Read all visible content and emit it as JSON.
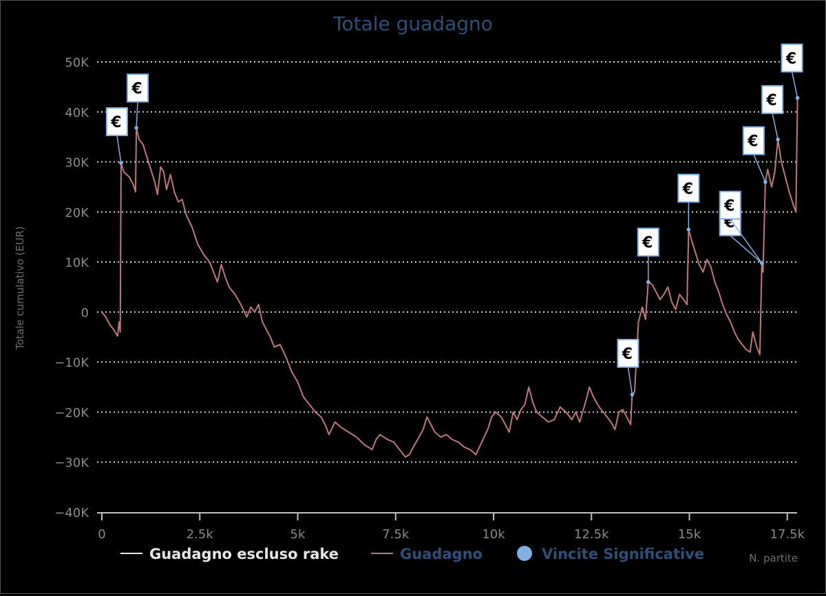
{
  "chart_data": {
    "type": "line",
    "title": "Totale guadagno",
    "ylabel": "Totale cumulativo (EUR)",
    "xlabel": "N. partite",
    "xlim": [
      0,
      17750
    ],
    "ylim": [
      -40000,
      50000
    ],
    "x_ticks": [
      {
        "value": 0,
        "label": "0"
      },
      {
        "value": 2500,
        "label": "2.5k"
      },
      {
        "value": 5000,
        "label": "5k"
      },
      {
        "value": 7500,
        "label": "7.5k"
      },
      {
        "value": 10000,
        "label": "10k"
      },
      {
        "value": 12500,
        "label": "12.5k"
      },
      {
        "value": 15000,
        "label": "15k"
      },
      {
        "value": 17500,
        "label": "17.5k"
      }
    ],
    "y_ticks": [
      {
        "value": 50000,
        "label": "50K"
      },
      {
        "value": 40000,
        "label": "40K"
      },
      {
        "value": 30000,
        "label": "30K"
      },
      {
        "value": 20000,
        "label": "20K"
      },
      {
        "value": 10000,
        "label": "10K"
      },
      {
        "value": 0,
        "label": "0"
      },
      {
        "value": -10000,
        "label": "−10K"
      },
      {
        "value": -20000,
        "label": "−20K"
      },
      {
        "value": -30000,
        "label": "−30K"
      },
      {
        "value": -40000,
        "label": "−40K"
      }
    ],
    "grid": "horizontal-dotted",
    "legend_position": "bottom",
    "series": [
      {
        "name": "Guadagno escluso rake",
        "color": "#e8e8e8",
        "points": []
      },
      {
        "name": "Guadagno",
        "color": "#c07878",
        "points": [
          [
            0,
            0
          ],
          [
            100,
            -1000
          ],
          [
            200,
            -2500
          ],
          [
            300,
            -3500
          ],
          [
            400,
            -4800
          ],
          [
            440,
            -2000
          ],
          [
            470,
            -4000
          ],
          [
            490,
            29800
          ],
          [
            560,
            28000
          ],
          [
            700,
            27000
          ],
          [
            800,
            25500
          ],
          [
            860,
            24000
          ],
          [
            880,
            36800
          ],
          [
            950,
            34500
          ],
          [
            1050,
            33500
          ],
          [
            1150,
            31000
          ],
          [
            1250,
            28500
          ],
          [
            1350,
            26000
          ],
          [
            1420,
            23500
          ],
          [
            1500,
            29000
          ],
          [
            1580,
            28000
          ],
          [
            1650,
            24500
          ],
          [
            1750,
            27500
          ],
          [
            1850,
            24000
          ],
          [
            1950,
            22000
          ],
          [
            2050,
            22500
          ],
          [
            2150,
            19500
          ],
          [
            2300,
            17000
          ],
          [
            2450,
            13500
          ],
          [
            2600,
            11500
          ],
          [
            2750,
            10000
          ],
          [
            2850,
            8000
          ],
          [
            2950,
            6000
          ],
          [
            3050,
            9500
          ],
          [
            3150,
            7000
          ],
          [
            3250,
            5000
          ],
          [
            3400,
            3500
          ],
          [
            3550,
            1500
          ],
          [
            3700,
            -1000
          ],
          [
            3800,
            1000
          ],
          [
            3900,
            0
          ],
          [
            4000,
            1500
          ],
          [
            4100,
            -2000
          ],
          [
            4200,
            -3500
          ],
          [
            4300,
            -5000
          ],
          [
            4400,
            -7000
          ],
          [
            4550,
            -6500
          ],
          [
            4700,
            -9000
          ],
          [
            4850,
            -12000
          ],
          [
            5000,
            -14000
          ],
          [
            5150,
            -17000
          ],
          [
            5300,
            -18500
          ],
          [
            5450,
            -20000
          ],
          [
            5600,
            -21000
          ],
          [
            5700,
            -22500
          ],
          [
            5800,
            -24500
          ],
          [
            5950,
            -22000
          ],
          [
            6100,
            -23000
          ],
          [
            6300,
            -24000
          ],
          [
            6500,
            -25000
          ],
          [
            6700,
            -26500
          ],
          [
            6900,
            -27500
          ],
          [
            7000,
            -25500
          ],
          [
            7100,
            -24500
          ],
          [
            7300,
            -25500
          ],
          [
            7450,
            -26000
          ],
          [
            7600,
            -27500
          ],
          [
            7750,
            -29000
          ],
          [
            7850,
            -28500
          ],
          [
            7950,
            -27000
          ],
          [
            8100,
            -25000
          ],
          [
            8200,
            -23500
          ],
          [
            8300,
            -21000
          ],
          [
            8400,
            -22500
          ],
          [
            8500,
            -24000
          ],
          [
            8650,
            -25000
          ],
          [
            8800,
            -24500
          ],
          [
            8950,
            -25500
          ],
          [
            9100,
            -26000
          ],
          [
            9250,
            -27000
          ],
          [
            9400,
            -27500
          ],
          [
            9550,
            -28500
          ],
          [
            9700,
            -26000
          ],
          [
            9850,
            -23500
          ],
          [
            9950,
            -21000
          ],
          [
            10050,
            -20000
          ],
          [
            10200,
            -21000
          ],
          [
            10300,
            -22500
          ],
          [
            10400,
            -24000
          ],
          [
            10500,
            -20000
          ],
          [
            10600,
            -21500
          ],
          [
            10700,
            -19500
          ],
          [
            10800,
            -18500
          ],
          [
            10900,
            -15000
          ],
          [
            11000,
            -18000
          ],
          [
            11100,
            -20000
          ],
          [
            11250,
            -21000
          ],
          [
            11400,
            -22000
          ],
          [
            11550,
            -21500
          ],
          [
            11700,
            -19000
          ],
          [
            11850,
            -20000
          ],
          [
            12000,
            -21500
          ],
          [
            12100,
            -20000
          ],
          [
            12200,
            -22000
          ],
          [
            12350,
            -18000
          ],
          [
            12450,
            -15000
          ],
          [
            12550,
            -17000
          ],
          [
            12700,
            -19000
          ],
          [
            12850,
            -20500
          ],
          [
            13000,
            -22000
          ],
          [
            13100,
            -23500
          ],
          [
            13200,
            -20000
          ],
          [
            13300,
            -19500
          ],
          [
            13400,
            -21000
          ],
          [
            13500,
            -22500
          ],
          [
            13540,
            -16500
          ],
          [
            13600,
            -16000
          ],
          [
            13700,
            -2000
          ],
          [
            13800,
            1000
          ],
          [
            13880,
            -1500
          ],
          [
            13950,
            6000
          ],
          [
            14050,
            5500
          ],
          [
            14150,
            4000
          ],
          [
            14250,
            2500
          ],
          [
            14350,
            3500
          ],
          [
            14450,
            5000
          ],
          [
            14550,
            2000
          ],
          [
            14650,
            500
          ],
          [
            14750,
            3500
          ],
          [
            14850,
            2500
          ],
          [
            14940,
            1500
          ],
          [
            14980,
            16500
          ],
          [
            15050,
            14500
          ],
          [
            15150,
            12000
          ],
          [
            15250,
            9500
          ],
          [
            15350,
            8000
          ],
          [
            15450,
            10500
          ],
          [
            15550,
            9000
          ],
          [
            15650,
            6000
          ],
          [
            15750,
            4000
          ],
          [
            15850,
            1500
          ],
          [
            15950,
            -500
          ],
          [
            16050,
            -2000
          ],
          [
            16150,
            -4000
          ],
          [
            16250,
            -5500
          ],
          [
            16350,
            -6500
          ],
          [
            16450,
            -7500
          ],
          [
            16550,
            -8000
          ],
          [
            16620,
            -4000
          ],
          [
            16720,
            -7000
          ],
          [
            16800,
            -8500
          ],
          [
            16850,
            9800
          ],
          [
            16880,
            8000
          ],
          [
            16940,
            26000
          ],
          [
            17000,
            28500
          ],
          [
            17100,
            25000
          ],
          [
            17180,
            28000
          ],
          [
            17260,
            34500
          ],
          [
            17350,
            30000
          ],
          [
            17450,
            27000
          ],
          [
            17550,
            24000
          ],
          [
            17650,
            21500
          ],
          [
            17720,
            20000
          ],
          [
            17760,
            42800
          ]
        ]
      }
    ],
    "markers": {
      "name": "Vincite Significative",
      "color": "#7fb0e6",
      "symbol": "€",
      "points": [
        {
          "x": 490,
          "y": 29800,
          "label": "€"
        },
        {
          "x": 880,
          "y": 36800,
          "label": "€"
        },
        {
          "x": 13540,
          "y": -16500,
          "label": "€"
        },
        {
          "x": 13950,
          "y": 6000,
          "label": "€"
        },
        {
          "x": 14980,
          "y": 16500,
          "label": "€"
        },
        {
          "x": 16850,
          "y": 9800,
          "label": "€"
        },
        {
          "x": 16850,
          "y": 9800,
          "label": "€"
        },
        {
          "x": 16940,
          "y": 26000,
          "label": "€"
        },
        {
          "x": 17260,
          "y": 34500,
          "label": "€"
        },
        {
          "x": 17760,
          "y": 42800,
          "label": "€"
        }
      ]
    }
  }
}
